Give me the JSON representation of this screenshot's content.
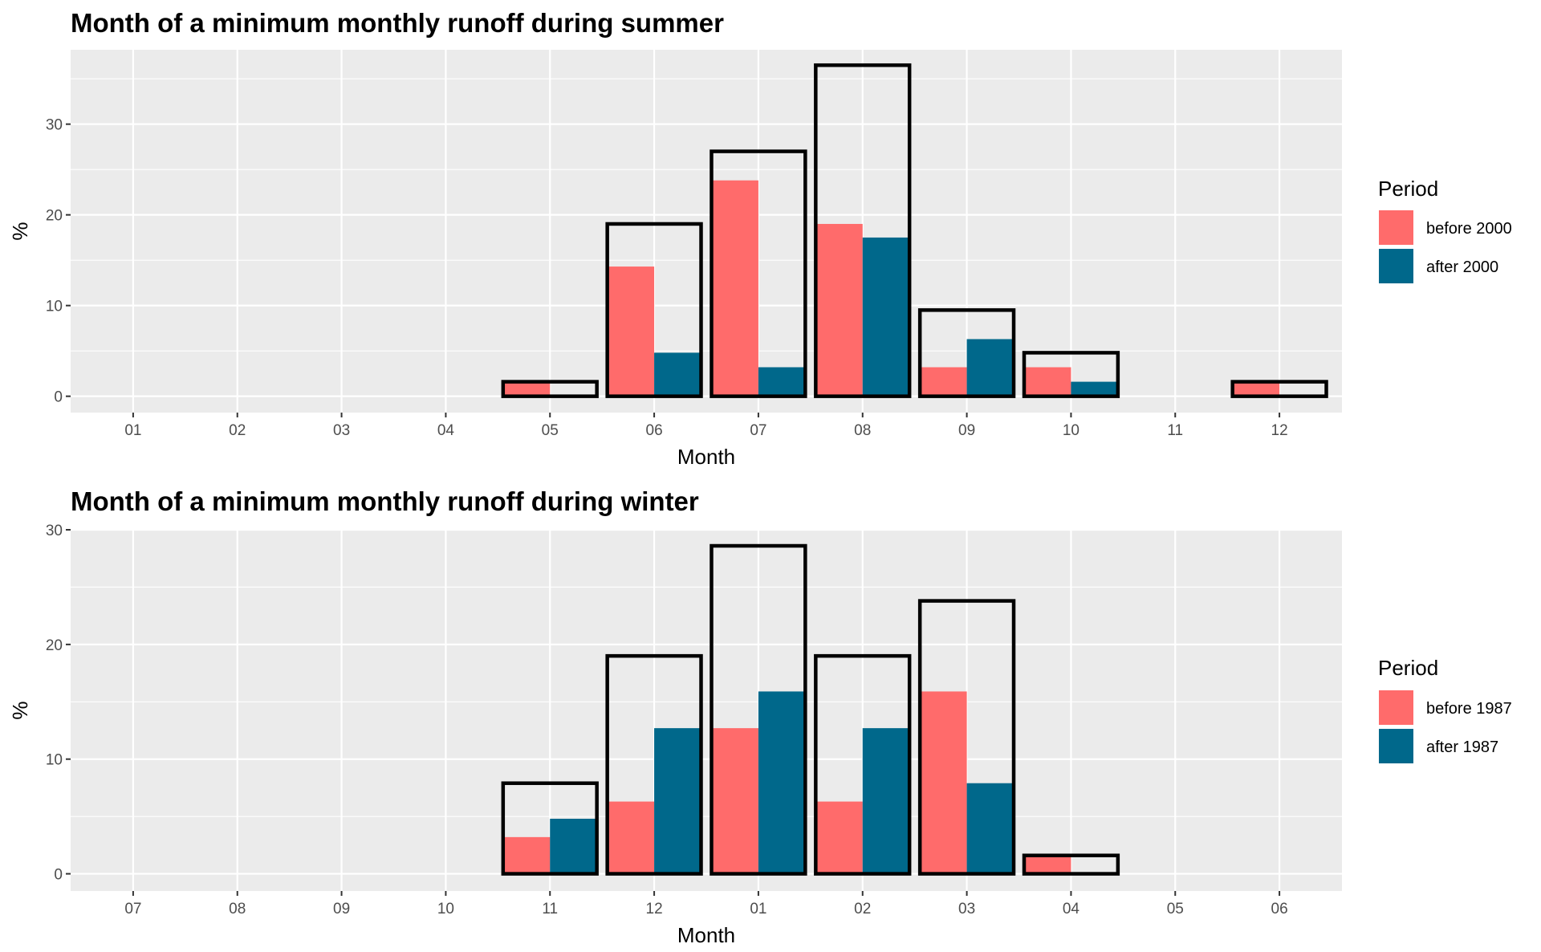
{
  "colors": {
    "before": "#ff6b6b",
    "after": "#00688b",
    "panel_bg": "#ebebeb",
    "grid_major": "#ffffff",
    "outline": "#000000"
  },
  "chart_data": [
    {
      "type": "bar",
      "title": "Month of a minimum monthly runoff during summer",
      "xlabel": "Month",
      "ylabel": "%",
      "categories": [
        "01",
        "02",
        "03",
        "04",
        "05",
        "06",
        "07",
        "08",
        "09",
        "10",
        "11",
        "12"
      ],
      "yticks": [
        0,
        10,
        20,
        30
      ],
      "ylim": [
        -1.8,
        38.2
      ],
      "legend_title": "Period",
      "legend_position": "right",
      "series": [
        {
          "name": "before 2000",
          "color_key": "before",
          "values": [
            0,
            0,
            0,
            0,
            1.6,
            14.3,
            23.8,
            19.0,
            3.2,
            3.2,
            0,
            1.6
          ]
        },
        {
          "name": "after 2000",
          "color_key": "after",
          "values": [
            0,
            0,
            0,
            0,
            0,
            4.8,
            3.2,
            17.5,
            6.3,
            1.6,
            0,
            0
          ]
        }
      ],
      "totals": [
        0,
        0,
        0,
        0,
        1.6,
        19.0,
        27.0,
        36.5,
        9.5,
        4.8,
        0,
        1.6
      ]
    },
    {
      "type": "bar",
      "title": "Month of a minimum monthly runoff during winter",
      "xlabel": "Month",
      "ylabel": "%",
      "categories": [
        "07",
        "08",
        "09",
        "10",
        "11",
        "12",
        "01",
        "02",
        "03",
        "04",
        "05",
        "06"
      ],
      "yticks": [
        0,
        10,
        20,
        30
      ],
      "ylim": [
        -1.5,
        30.0
      ],
      "legend_title": "Period",
      "legend_position": "right",
      "series": [
        {
          "name": "before 1987",
          "color_key": "before",
          "values": [
            0,
            0,
            0,
            0,
            3.2,
            6.3,
            12.7,
            6.3,
            15.9,
            1.6,
            0,
            0
          ]
        },
        {
          "name": "after 1987",
          "color_key": "after",
          "values": [
            0,
            0,
            0,
            0,
            4.8,
            12.7,
            15.9,
            12.7,
            7.9,
            0,
            0,
            0
          ]
        }
      ],
      "totals": [
        0,
        0,
        0,
        0,
        7.9,
        19.0,
        28.6,
        19.0,
        23.8,
        1.6,
        0,
        0
      ]
    }
  ]
}
